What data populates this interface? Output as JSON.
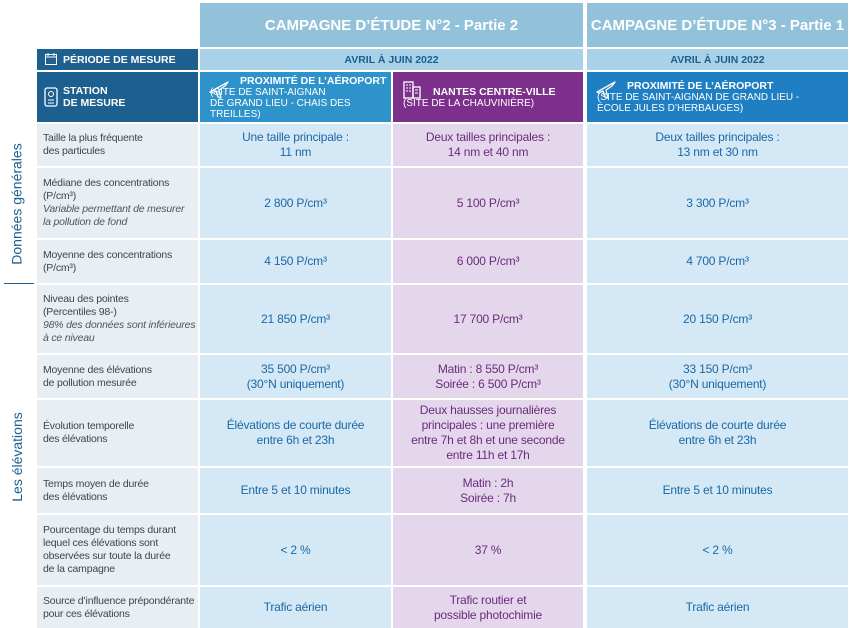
{
  "header": {
    "period_label": "PÉRIODE DE MESURE",
    "station_label": [
      "STATION",
      "DE MESURE"
    ],
    "campaigns": [
      {
        "title": "CAMPAGNE D’ÉTUDE N°2 - Partie 2",
        "period": "AVRIL À JUIN 2022",
        "stations": [
          {
            "name": "PROXIMITÉ DE L’AÉROPORT",
            "site": [
              "(SITE DE SAINT-AIGNAN",
              "DE GRAND LIEU - CHAIS DES TREILLES)"
            ]
          },
          {
            "name": "NANTES CENTRE-VILLE",
            "site": [
              "(SITE DE LA CHAUVINIÈRE)"
            ]
          }
        ]
      },
      {
        "title": "CAMPAGNE D’ÉTUDE N°3 - Partie 1",
        "period": "AVRIL À JUIN 2022",
        "stations": [
          {
            "name": "PROXIMITÉ DE L’AÉROPORT",
            "site": [
              "(SITE DE SAINT-AIGNAN DE GRAND LIEU -",
              "ÉCOLE JULES D’HERBAUGES)"
            ]
          }
        ]
      }
    ]
  },
  "groups": [
    {
      "label": "Données générales",
      "rows": [
        {
          "label": [
            "Taille la plus fréquente",
            "des particules"
          ],
          "cells": [
            [
              "Une taille principale :",
              "11 nm"
            ],
            [
              "Deux tailles principales :",
              "14 nm et 40 nm"
            ],
            [
              "Deux tailles principales :",
              "13 nm et 30 nm"
            ]
          ]
        },
        {
          "label": [
            "Médiane des concentrations",
            "(P/cm³)"
          ],
          "note": [
            "Variable permettant de mesurer",
            "la pollution de fond"
          ],
          "cells": [
            [
              "2 800 P/cm³"
            ],
            [
              "5 100 P/cm³"
            ],
            [
              "3 300 P/cm³"
            ]
          ]
        },
        {
          "label": [
            "Moyenne des concentrations",
            "(P/cm³)"
          ],
          "cells": [
            [
              "4 150 P/cm³"
            ],
            [
              "6 000 P/cm³"
            ],
            [
              "4 700 P/cm³"
            ]
          ]
        }
      ]
    },
    {
      "label": "Les élévations",
      "rows": [
        {
          "label": [
            "Niveau des pointes",
            "(Percentiles 98-)"
          ],
          "note": [
            "98% des données sont inférieures",
            "à ce niveau"
          ],
          "cells": [
            [
              "21 850 P/cm³"
            ],
            [
              "17 700 P/cm³"
            ],
            [
              "20 150 P/cm³"
            ]
          ]
        },
        {
          "label": [
            "Moyenne des élévations",
            "de pollution mesurée"
          ],
          "cells": [
            [
              "35 500 P/cm³",
              "(30°N uniquement)"
            ],
            [
              "Matin :  8 550 P/cm³",
              "Soirée : 6 500 P/cm³"
            ],
            [
              "33 150 P/cm³",
              "(30°N uniquement)"
            ]
          ]
        },
        {
          "label": [
            "Évolution temporelle",
            "des élévations"
          ],
          "cells": [
            [
              "Élévations de courte durée",
              "entre 6h et 23h"
            ],
            [
              "Deux hausses journalières",
              "principales : une première",
              "entre 7h et 8h et une seconde",
              "entre 11h et 17h"
            ],
            [
              "Élévations de courte durée",
              "entre 6h et 23h"
            ]
          ]
        },
        {
          "label": [
            "Temps moyen de durée",
            "des élévations"
          ],
          "cells": [
            [
              "Entre 5 et 10 minutes"
            ],
            [
              "Matin : 2h",
              "Soirée : 7h"
            ],
            [
              "Entre 5 et 10 minutes"
            ]
          ]
        },
        {
          "label": [
            "Pourcentage du temps durant",
            "lequel ces élévations sont",
            "observées sur toute la durée",
            "de la campagne"
          ],
          "cells": [
            [
              "< 2 %"
            ],
            [
              "37 %"
            ],
            [
              "< 2 %"
            ]
          ]
        },
        {
          "label": [
            "Source d’influence prépondérante",
            "pour ces élévations"
          ],
          "cells": [
            [
              "Trafic aérien"
            ],
            [
              "Trafic routier et",
              "possible photochimie"
            ],
            [
              "Trafic aérien"
            ]
          ]
        }
      ]
    }
  ]
}
